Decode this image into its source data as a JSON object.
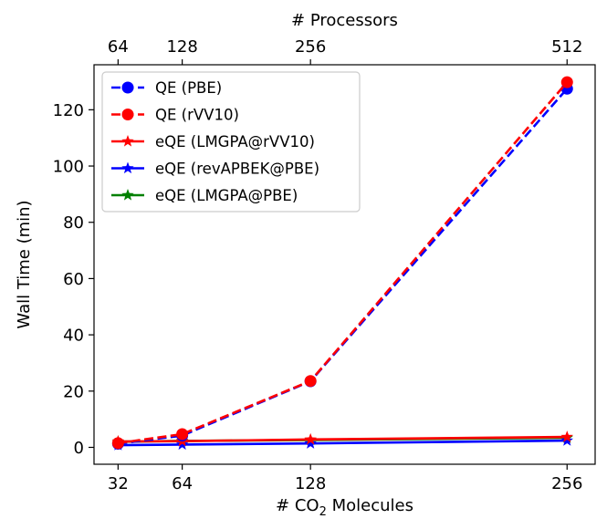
{
  "chart_data": {
    "type": "line",
    "xlabel": "# CO",
    "xlabel_sub": "2",
    "xlabel_tail": " Molecules",
    "ylabel": "Wall Time (min)",
    "top_xlabel": "# Processors",
    "x": [
      32,
      64,
      128,
      256
    ],
    "xlim": [
      20,
      270
    ],
    "ylim": [
      -6,
      136
    ],
    "yticks": [
      0,
      20,
      40,
      60,
      80,
      100,
      120
    ],
    "xticks": [
      32,
      64,
      128,
      256
    ],
    "top_ticks": [
      {
        "x": 32,
        "label": "64"
      },
      {
        "x": 64,
        "label": "128"
      },
      {
        "x": 128,
        "label": "256"
      },
      {
        "x": 256,
        "label": "512"
      }
    ],
    "legend_position": "upper-left",
    "series": [
      {
        "name": "QE (PBE)",
        "values": [
          1.3,
          4.2,
          23.5,
          127.5
        ],
        "color": "#0000ff",
        "linestyle": "dashed",
        "marker": "circle"
      },
      {
        "name": "QE (rVV10)",
        "values": [
          1.5,
          4.7,
          23.6,
          129.8
        ],
        "color": "#ff0000",
        "linestyle": "dashed",
        "marker": "circle"
      },
      {
        "name": "eQE (LMGPA@rVV10)",
        "values": [
          2.1,
          2.2,
          2.8,
          3.7
        ],
        "color": "#ff0000",
        "linestyle": "solid",
        "marker": "star"
      },
      {
        "name": "eQE (revAPBEK@PBE)",
        "values": [
          0.8,
          1.0,
          1.4,
          2.4
        ],
        "color": "#0000ff",
        "linestyle": "solid",
        "marker": "star"
      },
      {
        "name": "eQE (LMGPA@PBE)",
        "values": [
          2.0,
          2.3,
          2.6,
          3.4
        ],
        "color": "#008000",
        "linestyle": "solid",
        "marker": "star"
      }
    ]
  }
}
